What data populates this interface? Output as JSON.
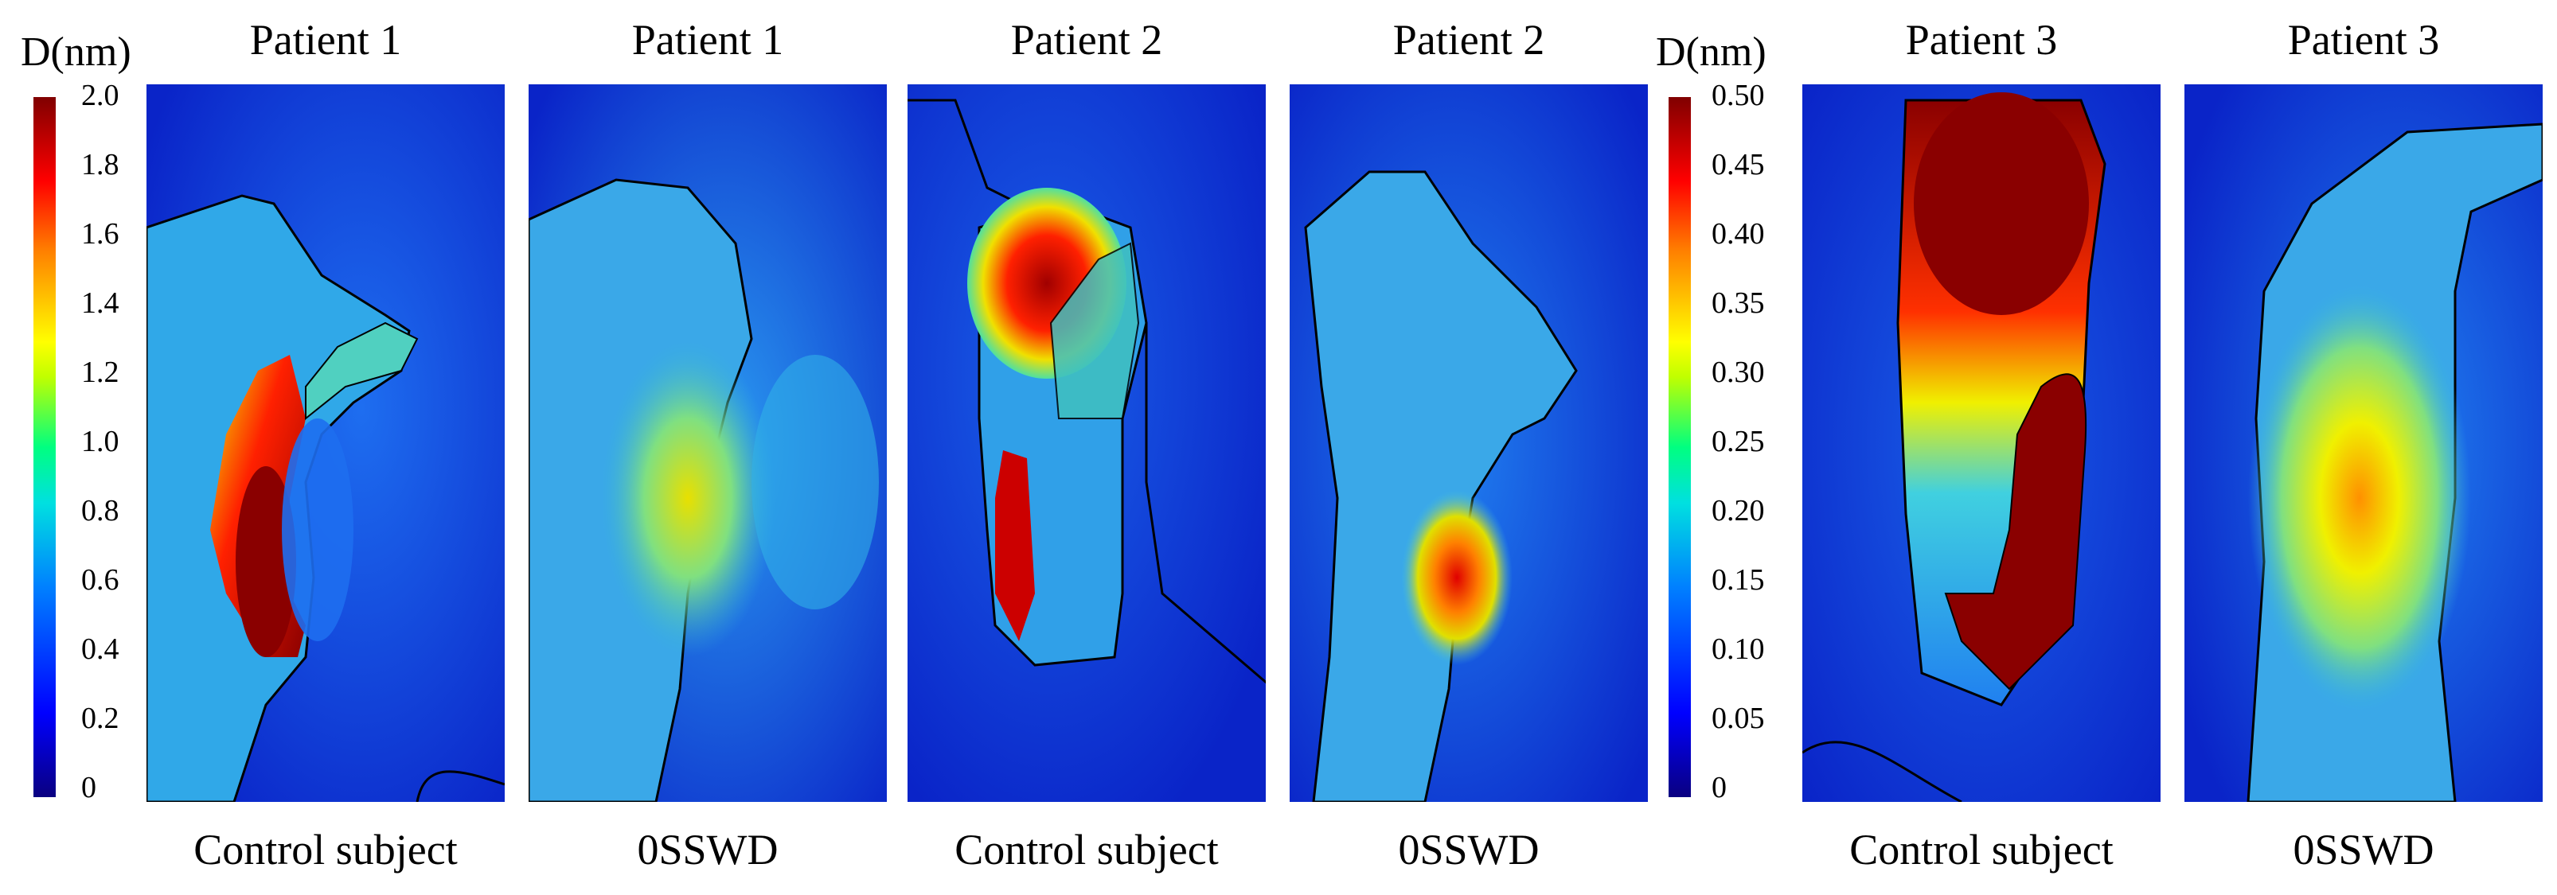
{
  "colorbars": [
    {
      "unit_label": "D(nm)",
      "ticks": [
        "2.0",
        "1.8",
        "1.6",
        "1.4",
        "1.2",
        "1.0",
        "0.8",
        "0.6",
        "0.4",
        "0.2",
        "0"
      ],
      "range": [
        0,
        2.0
      ]
    },
    {
      "unit_label": "D(nm)",
      "ticks": [
        "0.50",
        "0.45",
        "0.40",
        "0.35",
        "0.30",
        "0.25",
        "0.20",
        "0.15",
        "0.10",
        "0.05",
        "0"
      ],
      "range": [
        0,
        0.5
      ]
    }
  ],
  "panels": [
    {
      "title": "Patient 1",
      "caption": "Control subject"
    },
    {
      "title": "Patient 1",
      "caption": "0SSWD"
    },
    {
      "title": "Patient 2",
      "caption": "Control subject"
    },
    {
      "title": "Patient 2",
      "caption": "0SSWD"
    },
    {
      "title": "Patient 3",
      "caption": "Control subject"
    },
    {
      "title": "Patient 3",
      "caption": "0SSWD"
    }
  ],
  "colors": {
    "background_blue": "#0a24c8",
    "low_cyan": "#20c0e0",
    "mid_green": "#40e0a0",
    "high_yellow": "#f0f000",
    "peak_red": "#e00000",
    "max_darkred": "#8a0000"
  }
}
